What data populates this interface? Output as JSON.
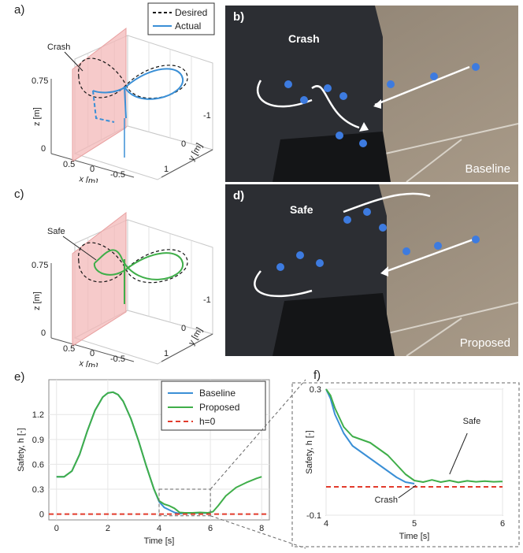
{
  "panel_labels": {
    "a": "a)",
    "b": "b)",
    "c": "c)",
    "d": "d)",
    "e": "e)",
    "f": "f)"
  },
  "photos": {
    "b": {
      "annotation": "Crash",
      "caption": "Baseline"
    },
    "d": {
      "annotation": "Safe",
      "caption": "Proposed"
    }
  },
  "colors": {
    "desired": "#111111",
    "actual": "#3a8fd6",
    "baseline": "#3a8fd6",
    "proposed": "#3fae49",
    "threshold": "#e23b2c",
    "wall": "#f3b8b8"
  },
  "chart_data": [
    {
      "id": "a",
      "type": "line",
      "legend": {
        "desired": "Desired",
        "actual": "Actual",
        "placement": "top-right"
      },
      "annotation": "Crash",
      "axes": {
        "z": {
          "label": "z [m]",
          "ticks": [
            "0.75",
            "0"
          ]
        },
        "x": {
          "label": "x [m]",
          "ticks": [
            "0.5",
            "0",
            "-0.5"
          ]
        },
        "y": {
          "label": "y [m]",
          "ticks": [
            "-1",
            "0",
            "1"
          ]
        }
      }
    },
    {
      "id": "c",
      "type": "line",
      "annotation": "Safe",
      "axes": {
        "z": {
          "label": "z [m]",
          "ticks": [
            "0.75",
            "0"
          ]
        },
        "x": {
          "label": "x [m]",
          "ticks": [
            "0.5",
            "0",
            "-0.5"
          ]
        },
        "y": {
          "label": "y [m]",
          "ticks": [
            "-1",
            "0",
            "1"
          ]
        }
      }
    },
    {
      "id": "e",
      "type": "line",
      "xlabel": "Time [s]",
      "ylabel": "Safety, h [-]",
      "xlim": [
        -0.3,
        8.3
      ],
      "ylim": [
        -0.07,
        1.62
      ],
      "xticks": [
        0,
        2,
        4,
        6,
        8
      ],
      "yticks": [
        0,
        0.3,
        0.6,
        0.9,
        1.2
      ],
      "ytick_labels": [
        "0",
        "0.3",
        "0.6",
        "0.9",
        "1.2"
      ],
      "grid": true,
      "legend": {
        "placement": "top-right"
      },
      "series": [
        {
          "name": "Baseline",
          "key": "baseline",
          "x": [
            0,
            0.3,
            0.6,
            0.9,
            1.2,
            1.5,
            1.8,
            2.0,
            2.2,
            2.4,
            2.6,
            2.9,
            3.2,
            3.5,
            3.8,
            4.0,
            4.2,
            4.4,
            4.6,
            4.8,
            5.0,
            5.3,
            5.6,
            5.9,
            6.0
          ],
          "y": [
            0.45,
            0.45,
            0.52,
            0.72,
            1.0,
            1.25,
            1.41,
            1.46,
            1.47,
            1.44,
            1.36,
            1.15,
            0.88,
            0.58,
            0.3,
            0.15,
            0.08,
            0.05,
            0.02,
            0.005,
            0.012,
            0.012,
            0.015,
            0.012,
            0.015
          ]
        },
        {
          "name": "Proposed",
          "key": "proposed",
          "x": [
            0,
            0.3,
            0.6,
            0.9,
            1.2,
            1.5,
            1.8,
            2.0,
            2.2,
            2.4,
            2.6,
            2.9,
            3.2,
            3.5,
            3.8,
            4.0,
            4.2,
            4.4,
            4.6,
            4.8,
            5.0,
            5.3,
            5.6,
            5.9,
            6.1,
            6.3,
            6.6,
            7.0,
            7.4,
            7.8,
            8.0
          ],
          "y": [
            0.45,
            0.45,
            0.52,
            0.72,
            1.0,
            1.25,
            1.41,
            1.46,
            1.47,
            1.44,
            1.36,
            1.15,
            0.88,
            0.58,
            0.3,
            0.16,
            0.12,
            0.1,
            0.07,
            0.02,
            0.015,
            0.015,
            0.02,
            0.015,
            0.03,
            0.1,
            0.22,
            0.32,
            0.38,
            0.43,
            0.45
          ]
        },
        {
          "name": "h=0",
          "key": "threshold",
          "x": [
            -0.3,
            8.3
          ],
          "y": [
            0,
            0
          ],
          "dashed": true
        }
      ],
      "zoom_box": {
        "x": [
          4,
          6
        ],
        "y": [
          -0.02,
          0.3
        ]
      }
    },
    {
      "id": "f",
      "type": "line",
      "xlabel": "Time [s]",
      "ylabel": "Safety, h [-]",
      "xlim": [
        4,
        6
      ],
      "ylim": [
        -0.1,
        0.3
      ],
      "xticks": [
        4,
        5,
        6
      ],
      "yticks": [
        -0.1,
        0.3
      ],
      "ytick_labels": [
        "-0.1",
        "0.3"
      ],
      "grid": true,
      "annotations": [
        {
          "text": "Safe"
        },
        {
          "text": "Crash"
        }
      ],
      "series": [
        {
          "name": "Baseline",
          "key": "baseline",
          "x": [
            4.0,
            4.05,
            4.1,
            4.2,
            4.3,
            4.4,
            4.5,
            4.6,
            4.7,
            4.8,
            4.9,
            5.0
          ],
          "y": [
            0.3,
            0.27,
            0.22,
            0.16,
            0.12,
            0.1,
            0.08,
            0.06,
            0.04,
            0.02,
            0.005,
            0.0
          ]
        },
        {
          "name": "Proposed",
          "key": "proposed",
          "x": [
            4.0,
            4.05,
            4.1,
            4.2,
            4.3,
            4.4,
            4.5,
            4.6,
            4.7,
            4.8,
            4.9,
            5.0,
            5.1,
            5.2,
            5.3,
            5.4,
            5.5,
            5.6,
            5.7,
            5.8,
            5.9,
            6.0
          ],
          "y": [
            0.3,
            0.28,
            0.24,
            0.18,
            0.15,
            0.14,
            0.13,
            0.11,
            0.09,
            0.06,
            0.03,
            0.01,
            0.005,
            0.012,
            0.005,
            0.01,
            0.004,
            0.009,
            0.006,
            0.008,
            0.006,
            0.007
          ]
        },
        {
          "name": "h=0",
          "key": "threshold",
          "x": [
            4,
            6
          ],
          "y": [
            -0.01,
            -0.01
          ],
          "dashed": true
        }
      ]
    }
  ]
}
